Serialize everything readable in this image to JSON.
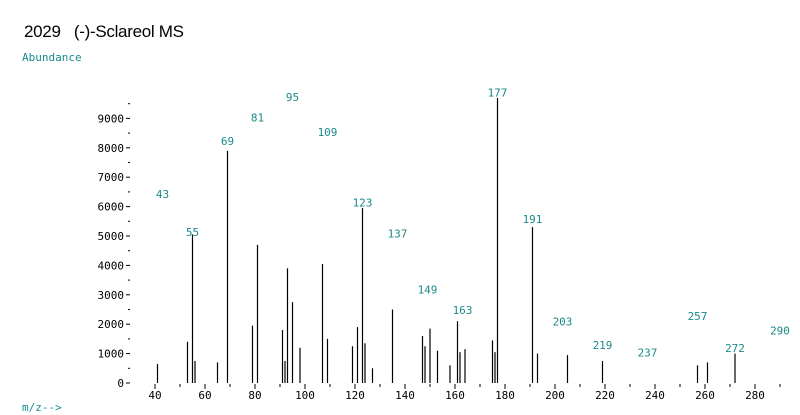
{
  "header": {
    "title": "2029   (-)-Sclareol MS"
  },
  "colors": {
    "label_teal": "#1a8a8a",
    "bars": "#000000"
  },
  "chart_data": {
    "type": "bar",
    "title": "2029   (-)-Sclareol MS",
    "ylabel": "Abundance",
    "xlabel": "m/z-->",
    "xlim": [
      35,
      300
    ],
    "ylim": [
      0,
      9800
    ],
    "x_ticks": [
      40,
      60,
      80,
      100,
      120,
      140,
      160,
      180,
      200,
      220,
      240,
      260,
      280
    ],
    "y_ticks": [
      0,
      1000,
      2000,
      3000,
      4000,
      5000,
      6000,
      7000,
      8000,
      9000
    ],
    "points": [
      {
        "mz": 41,
        "abundance": 650
      },
      {
        "mz": 53,
        "abundance": 1400
      },
      {
        "mz": 55,
        "abundance": 5050
      },
      {
        "mz": 56,
        "abundance": 750
      },
      {
        "mz": 65,
        "abundance": 700
      },
      {
        "mz": 69,
        "abundance": 7900
      },
      {
        "mz": 79,
        "abundance": 1950
      },
      {
        "mz": 81,
        "abundance": 4700
      },
      {
        "mz": 91,
        "abundance": 1800
      },
      {
        "mz": 92,
        "abundance": 750
      },
      {
        "mz": 93,
        "abundance": 3900
      },
      {
        "mz": 95,
        "abundance": 2750
      },
      {
        "mz": 98,
        "abundance": 1200
      },
      {
        "mz": 107,
        "abundance": 4050
      },
      {
        "mz": 109,
        "abundance": 1500
      },
      {
        "mz": 119,
        "abundance": 1250
      },
      {
        "mz": 121,
        "abundance": 1900
      },
      {
        "mz": 123,
        "abundance": 5950
      },
      {
        "mz": 124,
        "abundance": 1350
      },
      {
        "mz": 127,
        "abundance": 500
      },
      {
        "mz": 135,
        "abundance": 2500
      },
      {
        "mz": 147,
        "abundance": 1600
      },
      {
        "mz": 148,
        "abundance": 1250
      },
      {
        "mz": 150,
        "abundance": 1850
      },
      {
        "mz": 153,
        "abundance": 1100
      },
      {
        "mz": 158,
        "abundance": 600
      },
      {
        "mz": 161,
        "abundance": 2100
      },
      {
        "mz": 162,
        "abundance": 1050
      },
      {
        "mz": 164,
        "abundance": 1150
      },
      {
        "mz": 175,
        "abundance": 1450
      },
      {
        "mz": 176,
        "abundance": 1050
      },
      {
        "mz": 177,
        "abundance": 9700
      },
      {
        "mz": 191,
        "abundance": 5300
      },
      {
        "mz": 193,
        "abundance": 1000
      },
      {
        "mz": 205,
        "abundance": 950
      },
      {
        "mz": 219,
        "abundance": 750
      },
      {
        "mz": 257,
        "abundance": 600
      },
      {
        "mz": 261,
        "abundance": 700
      },
      {
        "mz": 272,
        "abundance": 1000
      }
    ],
    "peak_labels": [
      {
        "text": "43",
        "mz": 43,
        "y": 6300
      },
      {
        "text": "55",
        "mz": 55,
        "y": 5000
      },
      {
        "text": "69",
        "mz": 69,
        "y": 8100
      },
      {
        "text": "81",
        "mz": 81,
        "y": 8900
      },
      {
        "text": "95",
        "mz": 95,
        "y": 9600
      },
      {
        "text": "109",
        "mz": 109,
        "y": 8400
      },
      {
        "text": "123",
        "mz": 123,
        "y": 6000
      },
      {
        "text": "137",
        "mz": 137,
        "y": 4950
      },
      {
        "text": "149",
        "mz": 149,
        "y": 3050
      },
      {
        "text": "163",
        "mz": 163,
        "y": 2350
      },
      {
        "text": "177",
        "mz": 177,
        "y": 9750
      },
      {
        "text": "191",
        "mz": 191,
        "y": 5450
      },
      {
        "text": "203",
        "mz": 203,
        "y": 1950
      },
      {
        "text": "219",
        "mz": 219,
        "y": 1150
      },
      {
        "text": "237",
        "mz": 237,
        "y": 900
      },
      {
        "text": "257",
        "mz": 257,
        "y": 2150
      },
      {
        "text": "272",
        "mz": 272,
        "y": 1050
      },
      {
        "text": "290",
        "mz": 290,
        "y": 1650
      }
    ]
  }
}
